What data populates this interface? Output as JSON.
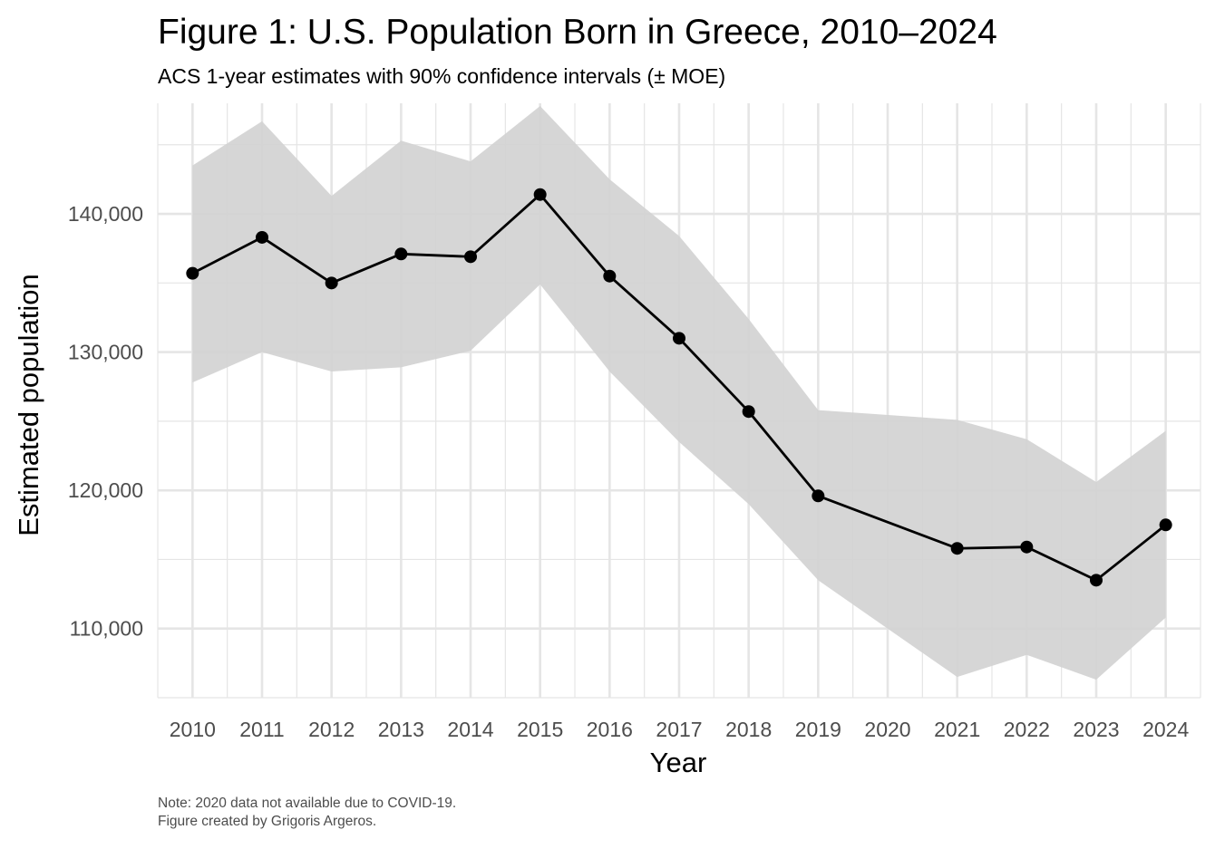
{
  "chart_data": {
    "type": "line",
    "title": "Figure 1: U.S. Population Born in Greece, 2010–2024",
    "subtitle": "ACS 1-year estimates with 90% confidence intervals (± MOE)",
    "xlabel": "Year",
    "ylabel": "Estimated population",
    "caption_lines": [
      "Note: 2020 data not available due to COVID-19.",
      "Figure created by Grigoris Argeros."
    ],
    "x_ticks": [
      2010,
      2011,
      2012,
      2013,
      2014,
      2015,
      2016,
      2017,
      2018,
      2019,
      2020,
      2021,
      2022,
      2023,
      2024
    ],
    "y_ticks": [
      110000,
      120000,
      130000,
      140000
    ],
    "y_tick_labels": [
      "110,000",
      "120,000",
      "130,000",
      "140,000"
    ],
    "xlim": [
      2009.5,
      2024.5
    ],
    "ylim": [
      105000,
      148000
    ],
    "grid": true,
    "legend": "none",
    "series": [
      {
        "name": "Estimate",
        "x": [
          2010,
          2011,
          2012,
          2013,
          2014,
          2015,
          2016,
          2017,
          2018,
          2019,
          2021,
          2022,
          2023,
          2024
        ],
        "values": [
          135700,
          138300,
          135000,
          137100,
          136900,
          141400,
          135500,
          131000,
          125700,
          119600,
          115800,
          115900,
          113500,
          117500
        ],
        "lower": [
          127800,
          130000,
          128600,
          128900,
          130100,
          134900,
          128600,
          123500,
          119000,
          113500,
          106500,
          108100,
          106300,
          110800
        ],
        "upper": [
          143500,
          146700,
          141300,
          145300,
          143800,
          147800,
          142500,
          138400,
          132400,
          125800,
          125100,
          123700,
          120600,
          124300
        ]
      }
    ],
    "colors": {
      "line": "#000000",
      "ribbon": "#d3d3d3",
      "grid_major": "#e5e5e5",
      "grid_minor": "#f0f0f0",
      "tick_text": "#4d4d4d"
    }
  }
}
